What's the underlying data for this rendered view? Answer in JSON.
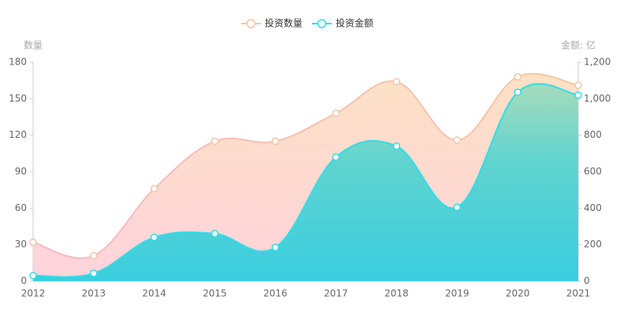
{
  "chart_data": {
    "type": "area",
    "legend_position": "top",
    "y_axis_name": "数量",
    "y2_axis_name": "金额: 亿",
    "categories": [
      "2012",
      "2013",
      "2014",
      "2015",
      "2016",
      "2017",
      "2018",
      "2019",
      "2020",
      "2021"
    ],
    "series": [
      {
        "name": "投资数量",
        "color": "#f7c3a6",
        "values": [
          32,
          21,
          76,
          115,
          115,
          138,
          164,
          116,
          168,
          161
        ]
      },
      {
        "name": "投资金额",
        "color": "#2fdde6",
        "axis": "y2",
        "values": [
          30,
          43,
          240,
          260,
          185,
          680,
          740,
          405,
          1035,
          1020
        ]
      }
    ],
    "ylim": [
      0,
      180
    ],
    "yticks": [
      0,
      30,
      60,
      90,
      120,
      150,
      180
    ],
    "y2lim": [
      0,
      1200
    ],
    "y2ticks": [
      0,
      200,
      400,
      600,
      800,
      {
        "value": 1000,
        "label": "1,000"
      },
      {
        "value": 1200,
        "label": "1,200"
      }
    ]
  }
}
